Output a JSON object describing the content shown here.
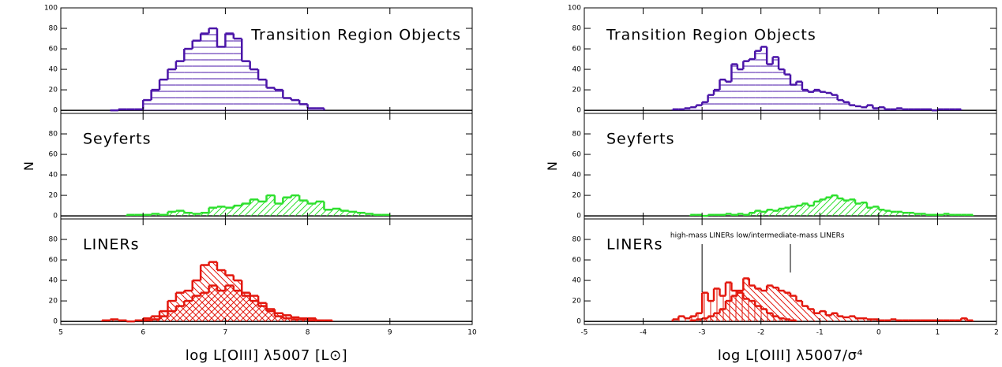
{
  "chart_data": [
    {
      "type": "histogram",
      "label": "Transition Region Objects",
      "xlim": [
        5,
        10
      ],
      "xticks": [
        5,
        6,
        7,
        8,
        9,
        10
      ],
      "ylim": [
        -3,
        100
      ],
      "yticks": [
        0,
        20,
        40,
        60,
        80,
        100
      ],
      "series": [
        {
          "color": "#4a14a8",
          "hatch": "horizontal",
          "bins": [
            5.6,
            5.7,
            5.8,
            5.9,
            6.0,
            6.1,
            6.2,
            6.3,
            6.4,
            6.5,
            6.6,
            6.7,
            6.8,
            6.9,
            7.0,
            7.1,
            7.2,
            7.3,
            7.4,
            7.5,
            7.6,
            7.7,
            7.8,
            7.9,
            8.0,
            8.1,
            8.2
          ],
          "values": [
            0,
            1,
            1,
            1,
            10,
            20,
            30,
            40,
            48,
            60,
            68,
            75,
            80,
            62,
            75,
            70,
            48,
            40,
            30,
            22,
            20,
            12,
            10,
            6,
            2,
            2
          ]
        }
      ]
    },
    {
      "type": "histogram",
      "label": "Seyferts",
      "ylabel": "N",
      "xlim": [
        5,
        10
      ],
      "xticks": [
        5,
        6,
        7,
        8,
        9,
        10
      ],
      "ylim": [
        -3,
        100
      ],
      "yticks": [
        0,
        20,
        40,
        60,
        80
      ],
      "series": [
        {
          "color": "#2ee02e",
          "hatch": "diagonal",
          "bins": [
            5.8,
            5.9,
            6.0,
            6.1,
            6.2,
            6.3,
            6.4,
            6.5,
            6.6,
            6.7,
            6.8,
            6.9,
            7.0,
            7.1,
            7.2,
            7.3,
            7.4,
            7.5,
            7.6,
            7.7,
            7.8,
            7.9,
            8.0,
            8.1,
            8.2,
            8.3,
            8.4,
            8.5,
            8.6,
            8.7,
            8.8,
            8.9,
            9.0
          ],
          "values": [
            1,
            1,
            1,
            2,
            1,
            4,
            5,
            3,
            2,
            3,
            8,
            9,
            8,
            10,
            12,
            16,
            14,
            20,
            12,
            18,
            20,
            15,
            12,
            14,
            6,
            7,
            5,
            4,
            3,
            2,
            1,
            1
          ]
        }
      ]
    },
    {
      "type": "histogram",
      "label": "LINERs",
      "xlabel": "log L[OIII] λ5007 [L⊙]",
      "xlim": [
        5,
        10
      ],
      "xticks": [
        5,
        6,
        7,
        8,
        9,
        10
      ],
      "ylim": [
        -3,
        100
      ],
      "yticks": [
        0,
        20,
        40,
        60,
        80
      ],
      "series": [
        {
          "color": "#e3170d",
          "hatch": "antidiagonal",
          "bins": [
            5.5,
            5.6,
            5.7,
            5.8,
            5.9,
            6.0,
            6.1,
            6.2,
            6.3,
            6.4,
            6.5,
            6.6,
            6.7,
            6.8,
            6.9,
            7.0,
            7.1,
            7.2,
            7.3,
            7.4,
            7.5,
            7.6,
            7.7,
            7.8,
            7.9,
            8.0,
            8.1,
            8.2,
            8.3
          ],
          "values": [
            1,
            2,
            1,
            0,
            1,
            3,
            5,
            10,
            20,
            28,
            30,
            40,
            55,
            58,
            50,
            45,
            40,
            28,
            25,
            18,
            12,
            8,
            6,
            4,
            3,
            3,
            1,
            1
          ]
        },
        {
          "color": "#e3170d",
          "hatch": "diagonal",
          "bins": [
            6.0,
            6.1,
            6.2,
            6.3,
            6.4,
            6.5,
            6.6,
            6.7,
            6.8,
            6.9,
            7.0,
            7.1,
            7.2,
            7.3,
            7.4,
            7.5,
            7.6,
            7.7,
            7.8,
            7.9,
            8.0,
            8.1
          ],
          "values": [
            1,
            2,
            5,
            10,
            15,
            20,
            25,
            28,
            35,
            30,
            35,
            30,
            25,
            20,
            15,
            10,
            5,
            3,
            2,
            2,
            1
          ]
        }
      ]
    },
    {
      "type": "histogram",
      "label": "Transition Region Objects",
      "xlim": [
        -5,
        2
      ],
      "xticks": [
        -5,
        -4,
        -3,
        -2,
        -1,
        0,
        1,
        2
      ],
      "ylim": [
        -3,
        100
      ],
      "yticks": [
        0,
        20,
        40,
        60,
        80,
        100
      ],
      "series": [
        {
          "color": "#4a14a8",
          "hatch": "horizontal",
          "bins": [
            -3.5,
            -3.4,
            -3.3,
            -3.2,
            -3.1,
            -3.0,
            -2.9,
            -2.8,
            -2.7,
            -2.6,
            -2.5,
            -2.4,
            -2.3,
            -2.2,
            -2.1,
            -2.0,
            -1.9,
            -1.8,
            -1.7,
            -1.6,
            -1.5,
            -1.4,
            -1.3,
            -1.2,
            -1.1,
            -1.0,
            -0.9,
            -0.8,
            -0.7,
            -0.6,
            -0.5,
            -0.4,
            -0.3,
            -0.2,
            -0.1,
            0.0,
            0.1,
            0.2,
            0.3,
            0.4,
            0.5,
            0.6,
            0.7,
            0.8,
            0.9,
            1.0,
            1.1,
            1.2,
            1.3,
            1.4
          ],
          "values": [
            1,
            1,
            2,
            3,
            5,
            8,
            15,
            20,
            30,
            28,
            45,
            40,
            48,
            50,
            58,
            62,
            45,
            52,
            40,
            35,
            25,
            28,
            20,
            18,
            20,
            18,
            17,
            15,
            10,
            8,
            5,
            4,
            3,
            5,
            2,
            3,
            1,
            1,
            2,
            1,
            1,
            1,
            1,
            1,
            0,
            1,
            1,
            1,
            1
          ]
        }
      ]
    },
    {
      "type": "histogram",
      "label": "Seyferts",
      "ylabel": "N",
      "xlim": [
        -5,
        2
      ],
      "xticks": [
        -5,
        -4,
        -3,
        -2,
        -1,
        0,
        1,
        2
      ],
      "ylim": [
        -3,
        100
      ],
      "yticks": [
        0,
        20,
        40,
        60,
        80
      ],
      "series": [
        {
          "color": "#2ee02e",
          "hatch": "diagonal",
          "bins": [
            -3.2,
            -3.1,
            -3.0,
            -2.9,
            -2.8,
            -2.7,
            -2.6,
            -2.5,
            -2.4,
            -2.3,
            -2.2,
            -2.1,
            -2.0,
            -1.9,
            -1.8,
            -1.7,
            -1.6,
            -1.5,
            -1.4,
            -1.3,
            -1.2,
            -1.1,
            -1.0,
            -0.9,
            -0.8,
            -0.7,
            -0.6,
            -0.5,
            -0.4,
            -0.3,
            -0.2,
            -0.1,
            0.0,
            0.1,
            0.2,
            0.3,
            0.4,
            0.5,
            0.6,
            0.7,
            0.8,
            0.9,
            1.0,
            1.1,
            1.2,
            1.3,
            1.4,
            1.5,
            1.6
          ],
          "values": [
            1,
            1,
            0,
            1,
            1,
            1,
            2,
            1,
            2,
            1,
            3,
            5,
            4,
            6,
            5,
            7,
            8,
            9,
            10,
            12,
            10,
            14,
            16,
            18,
            20,
            17,
            15,
            16,
            12,
            13,
            8,
            9,
            6,
            5,
            4,
            4,
            3,
            3,
            2,
            2,
            1,
            1,
            1,
            2,
            1,
            1,
            1,
            1
          ]
        }
      ]
    },
    {
      "type": "histogram",
      "label": "LINERs",
      "xlabel": "log L[OIII] λ5007/σ⁴",
      "xlim": [
        -5,
        2
      ],
      "xticks": [
        -5,
        -4,
        -3,
        -2,
        -1,
        0,
        1,
        2
      ],
      "ylim": [
        -3,
        100
      ],
      "yticks": [
        0,
        20,
        40,
        60,
        80
      ],
      "annotations": [
        {
          "text": "high-mass LINERs",
          "x": -3
        },
        {
          "text": "low/intermediate-mass LINERs",
          "x": -1.5
        }
      ],
      "series": [
        {
          "color": "#e3170d",
          "hatch": "vertical",
          "bins": [
            -3.5,
            -3.4,
            -3.3,
            -3.2,
            -3.1,
            -3.0,
            -2.9,
            -2.8,
            -2.7,
            -2.6,
            -2.5,
            -2.4,
            -2.3,
            -2.2,
            -2.1,
            -2.0,
            -1.9,
            -1.8,
            -1.7,
            -1.6,
            -1.5,
            -1.4
          ],
          "values": [
            2,
            5,
            3,
            5,
            8,
            28,
            20,
            32,
            25,
            38,
            30,
            28,
            22,
            20,
            15,
            12,
            8,
            5,
            3,
            2,
            1
          ]
        },
        {
          "color": "#e3170d",
          "hatch": "antidiagonal",
          "bins": [
            -3.2,
            -3.1,
            -3.0,
            -2.9,
            -2.8,
            -2.7,
            -2.6,
            -2.5,
            -2.4,
            -2.3,
            -2.2,
            -2.1,
            -2.0,
            -1.9,
            -1.8,
            -1.7,
            -1.6,
            -1.5,
            -1.4,
            -1.3,
            -1.2,
            -1.1,
            -1.0,
            -0.9,
            -0.8,
            -0.7,
            -0.6,
            -0.5,
            -0.4,
            -0.3,
            -0.2,
            -0.1,
            0.0,
            0.1,
            0.2,
            0.3,
            0.4,
            0.5,
            0.6,
            0.7,
            0.8,
            0.9,
            1.0,
            1.1,
            1.2,
            1.3,
            1.4,
            1.5,
            1.6
          ],
          "values": [
            1,
            2,
            3,
            5,
            8,
            12,
            20,
            25,
            30,
            42,
            35,
            32,
            30,
            35,
            33,
            30,
            28,
            25,
            20,
            15,
            12,
            8,
            10,
            6,
            8,
            5,
            4,
            5,
            3,
            3,
            2,
            2,
            1,
            1,
            2,
            1,
            1,
            1,
            1,
            1,
            1,
            1,
            1,
            1,
            1,
            1,
            3,
            1
          ]
        }
      ]
    }
  ]
}
